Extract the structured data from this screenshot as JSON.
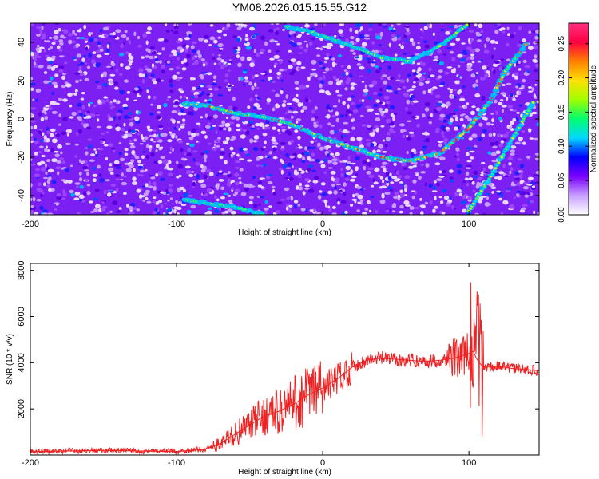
{
  "title": "YM08.2026.015.15.55.G12",
  "chart_data": [
    {
      "type": "heatmap",
      "xlabel": "Height of straight line (km)",
      "ylabel": "Frequency (Hz)",
      "xlim": [
        -200,
        148
      ],
      "ylim": [
        -50,
        50
      ],
      "xticks": [
        -200,
        -100,
        0,
        100
      ],
      "yticks": [
        -40,
        -20,
        0,
        20,
        40
      ],
      "colorbar": {
        "label": "Normalized spectral amplitude",
        "range": [
          0,
          0.28
        ],
        "ticks": [
          0,
          0.05,
          0.1,
          0.15,
          0.2,
          0.25
        ],
        "tick_labels": [
          "0.00",
          "0.05",
          "0.10",
          "0.15",
          "0.20",
          "0.25"
        ],
        "colors": [
          "#ffffff",
          "#c8a0ff",
          "#7a00ff",
          "#0000ff",
          "#00d8ff",
          "#00ff70",
          "#a0ff00",
          "#ffe000",
          "#ff8000",
          "#ff0040",
          "#ff3080"
        ]
      },
      "ridges": [
        {
          "x": [
            -95,
            -80,
            -60,
            -40,
            -20,
            0,
            20,
            40,
            60,
            80,
            100,
            115,
            125,
            140
          ],
          "y": [
            8,
            7,
            3,
            1,
            -3,
            -10,
            -15,
            -20,
            -22,
            -18,
            -5,
            10,
            25,
            40
          ]
        },
        {
          "x": [
            -25,
            -10,
            5,
            20,
            40,
            60,
            80,
            100
          ],
          "y": [
            48,
            46,
            42,
            38,
            32,
            30,
            38,
            50
          ]
        },
        {
          "x": [
            -95,
            -80,
            -60,
            -40
          ],
          "y": [
            -42,
            -44,
            -46,
            -50
          ]
        },
        {
          "x": [
            100,
            115,
            130,
            145
          ],
          "y": [
            -48,
            -30,
            -10,
            10
          ]
        }
      ]
    },
    {
      "type": "line",
      "xlabel": "Height of straight line (km)",
      "ylabel": "SNR (10 * v/v)",
      "xlim": [
        -200,
        148
      ],
      "ylim": [
        0,
        8300
      ],
      "xticks": [
        -200,
        -100,
        0,
        100
      ],
      "yticks": [
        2000,
        4000,
        6000,
        8000
      ],
      "color": "#ee2222",
      "series": [
        {
          "x": [
            -200,
            -150,
            -100,
            -80,
            -70,
            -60,
            -50,
            -40,
            -30,
            -20,
            -10,
            0,
            10,
            20,
            30,
            40,
            50,
            60,
            70,
            80,
            90,
            95,
            100,
            103,
            105,
            107,
            110,
            120,
            130,
            140,
            148
          ],
          "y": [
            150,
            200,
            150,
            250,
            500,
            900,
            1300,
            1700,
            1900,
            2200,
            2600,
            2900,
            3300,
            3800,
            4100,
            4200,
            4150,
            4100,
            4050,
            4100,
            4200,
            4300,
            4400,
            4500,
            4200,
            4000,
            3800,
            3850,
            3750,
            3700,
            3650
          ]
        }
      ]
    }
  ]
}
